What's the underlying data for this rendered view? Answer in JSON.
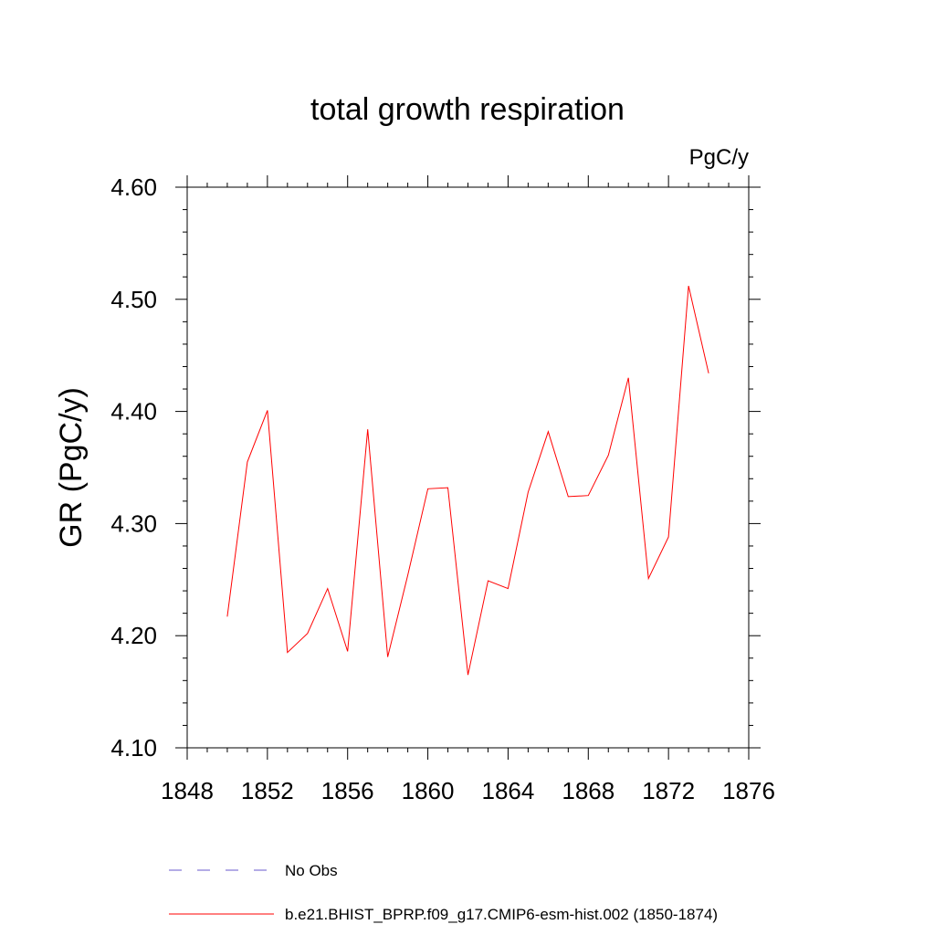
{
  "chart_data": {
    "type": "line",
    "title": "total growth respiration",
    "units_label": "PgC/y",
    "ylabel": "GR  (PgC/y)",
    "xlabel": "",
    "xlim": [
      1848,
      1876
    ],
    "ylim": [
      4.1,
      4.6
    ],
    "x_ticks": [
      "1848",
      "1852",
      "1856",
      "1860",
      "1864",
      "1868",
      "1872",
      "1876"
    ],
    "y_ticks": [
      "4.10",
      "4.20",
      "4.30",
      "4.40",
      "4.50",
      "4.60"
    ],
    "grid": false,
    "legend_position": "bottom",
    "series": [
      {
        "name": "b.e21.BHIST_BPRP.f09_g17.CMIP6-esm-hist.002 (1850-1874)",
        "color": "#ff0000",
        "style": "solid",
        "x": [
          1850,
          1851,
          1852,
          1853,
          1854,
          1855,
          1856,
          1857,
          1858,
          1859,
          1860,
          1861,
          1862,
          1863,
          1864,
          1865,
          1866,
          1867,
          1868,
          1869,
          1870,
          1871,
          1872,
          1873,
          1874
        ],
        "values": [
          4.217,
          4.355,
          4.401,
          4.185,
          4.202,
          4.242,
          4.186,
          4.384,
          4.181,
          4.254,
          4.331,
          4.332,
          4.165,
          4.249,
          4.242,
          4.328,
          4.382,
          4.324,
          4.325,
          4.361,
          4.43,
          4.251,
          4.288,
          4.512,
          4.434
        ]
      }
    ],
    "legend": [
      {
        "label": "No Obs",
        "color": "#6a5acd",
        "style": "dashed"
      },
      {
        "label": "b.e21.BHIST_BPRP.f09_g17.CMIP6-esm-hist.002 (1850-1874)",
        "color": "#ff0000",
        "style": "solid"
      }
    ]
  }
}
